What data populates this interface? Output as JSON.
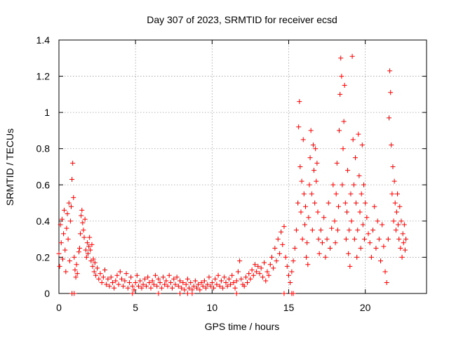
{
  "chart_data": {
    "type": "scatter",
    "title": "Day 307 of 2023, SRMTID for receiver ecsd",
    "xlabel": "GPS time / hours",
    "ylabel": "SRMTID / TECUs",
    "xlim": [
      0,
      24
    ],
    "ylim": [
      0,
      1.4
    ],
    "xticks": [
      0,
      5,
      10,
      15,
      20
    ],
    "xtick_labels": [
      "0",
      "5",
      "10",
      "15",
      "20"
    ],
    "yticks": [
      0,
      0.2,
      0.4,
      0.6,
      0.8,
      1.0,
      1.2,
      1.4
    ],
    "ytick_labels": [
      "0",
      "0.2",
      "0.4",
      "0.6",
      "0.8",
      "1",
      "1.2",
      "1.4"
    ],
    "grid": true,
    "marker": "+",
    "series_color": "#ff0000",
    "series": [
      {
        "name": "SRMTID",
        "points": [
          [
            0.0,
            0.22
          ],
          [
            0.05,
            0.15
          ],
          [
            0.1,
            0.38
          ],
          [
            0.15,
            0.28
          ],
          [
            0.2,
            0.41
          ],
          [
            0.25,
            0.19
          ],
          [
            0.3,
            0.33
          ],
          [
            0.35,
            0.46
          ],
          [
            0.4,
            0.24
          ],
          [
            0.45,
            0.12
          ],
          [
            0.5,
            0.36
          ],
          [
            0.55,
            0.44
          ],
          [
            0.6,
            0.3
          ],
          [
            0.65,
            0.5
          ],
          [
            0.7,
            0.18
          ],
          [
            0.75,
            0.4
          ],
          [
            0.8,
            0.48
          ],
          [
            0.85,
            0.63
          ],
          [
            0.9,
            0.72
          ],
          [
            0.95,
            0.53
          ],
          [
            1.0,
            0.2
          ],
          [
            1.05,
            0.13
          ],
          [
            1.1,
            0.09
          ],
          [
            1.15,
            0.16
          ],
          [
            1.2,
            0.11
          ],
          [
            1.3,
            0.23
          ],
          [
            1.35,
            0.25
          ],
          [
            1.4,
            0.33
          ],
          [
            1.45,
            0.43
          ],
          [
            1.5,
            0.46
          ],
          [
            1.55,
            0.39
          ],
          [
            1.6,
            0.35
          ],
          [
            1.65,
            0.31
          ],
          [
            1.7,
            0.41
          ],
          [
            1.75,
            0.24
          ],
          [
            1.8,
            0.2
          ],
          [
            1.85,
            0.28
          ],
          [
            1.9,
            0.22
          ],
          [
            1.95,
            0.26
          ],
          [
            2.0,
            0.31
          ],
          [
            2.05,
            0.24
          ],
          [
            2.1,
            0.18
          ],
          [
            2.15,
            0.27
          ],
          [
            2.2,
            0.15
          ],
          [
            2.25,
            0.19
          ],
          [
            2.3,
            0.12
          ],
          [
            2.35,
            0.17
          ],
          [
            2.4,
            0.1
          ],
          [
            2.5,
            0.14
          ],
          [
            2.6,
            0.08
          ],
          [
            2.7,
            0.11
          ],
          [
            2.8,
            0.06
          ],
          [
            2.9,
            0.09
          ],
          [
            3.0,
            0.13
          ],
          [
            3.1,
            0.05
          ],
          [
            3.2,
            0.08
          ],
          [
            3.3,
            0.04
          ],
          [
            3.4,
            0.09
          ],
          [
            3.5,
            0.06
          ],
          [
            3.6,
            0.03
          ],
          [
            3.7,
            0.07
          ],
          [
            3.8,
            0.1
          ],
          [
            3.9,
            0.05
          ],
          [
            4.0,
            0.12
          ],
          [
            4.1,
            0.08
          ],
          [
            4.2,
            0.04
          ],
          [
            4.3,
            0.07
          ],
          [
            4.4,
            0.11
          ],
          [
            4.5,
            0.03
          ],
          [
            4.6,
            0.06
          ],
          [
            4.7,
            0.09
          ],
          [
            4.8,
            0.04
          ],
          [
            4.9,
            0.02
          ],
          [
            5.0,
            0.06
          ],
          [
            5.1,
            0.1
          ],
          [
            5.2,
            0.04
          ],
          [
            5.3,
            0.07
          ],
          [
            5.4,
            0.03
          ],
          [
            5.5,
            0.05
          ],
          [
            5.6,
            0.08
          ],
          [
            5.7,
            0.04
          ],
          [
            5.8,
            0.09
          ],
          [
            5.9,
            0.06
          ],
          [
            6.0,
            0.03
          ],
          [
            6.1,
            0.07
          ],
          [
            6.2,
            0.05
          ],
          [
            6.3,
            0.1
          ],
          [
            6.4,
            0.04
          ],
          [
            6.5,
            0.08
          ],
          [
            6.6,
            0.06
          ],
          [
            6.7,
            0.03
          ],
          [
            6.8,
            0.09
          ],
          [
            6.9,
            0.05
          ],
          [
            7.0,
            0.07
          ],
          [
            7.1,
            0.04
          ],
          [
            7.2,
            0.1
          ],
          [
            7.3,
            0.06
          ],
          [
            7.4,
            0.03
          ],
          [
            7.5,
            0.08
          ],
          [
            7.6,
            0.05
          ],
          [
            7.7,
            0.09
          ],
          [
            7.8,
            0.04
          ],
          [
            7.9,
            0.07
          ],
          [
            8.0,
            0.03
          ],
          [
            8.1,
            0.06
          ],
          [
            8.2,
            0.02
          ],
          [
            8.3,
            0.05
          ],
          [
            8.4,
            0.08
          ],
          [
            8.5,
            0.03
          ],
          [
            8.6,
            0.06
          ],
          [
            8.7,
            0.02
          ],
          [
            8.8,
            0.04
          ],
          [
            8.9,
            0.07
          ],
          [
            9.0,
            0.03
          ],
          [
            9.1,
            0.05
          ],
          [
            9.2,
            0.02
          ],
          [
            9.3,
            0.06
          ],
          [
            9.4,
            0.04
          ],
          [
            9.5,
            0.07
          ],
          [
            9.6,
            0.03
          ],
          [
            9.7,
            0.05
          ],
          [
            9.8,
            0.09
          ],
          [
            9.9,
            0.04
          ],
          [
            10.0,
            0.06
          ],
          [
            10.1,
            0.03
          ],
          [
            10.2,
            0.08
          ],
          [
            10.3,
            0.05
          ],
          [
            10.4,
            0.1
          ],
          [
            10.5,
            0.04
          ],
          [
            10.6,
            0.07
          ],
          [
            10.7,
            0.03
          ],
          [
            10.8,
            0.09
          ],
          [
            10.9,
            0.06
          ],
          [
            11.0,
            0.04
          ],
          [
            11.1,
            0.08
          ],
          [
            11.2,
            0.05
          ],
          [
            11.3,
            0.1
          ],
          [
            11.4,
            0.06
          ],
          [
            11.5,
            0.03
          ],
          [
            11.6,
            0.07
          ],
          [
            11.7,
            0.12
          ],
          [
            11.8,
            0.18
          ],
          [
            11.9,
            0.08
          ],
          [
            12.0,
            0.05
          ],
          [
            12.1,
            0.04
          ],
          [
            12.2,
            0.09
          ],
          [
            12.3,
            0.06
          ],
          [
            12.4,
            0.11
          ],
          [
            12.5,
            0.08
          ],
          [
            12.6,
            0.13
          ],
          [
            12.7,
            0.1
          ],
          [
            12.8,
            0.16
          ],
          [
            12.9,
            0.12
          ],
          [
            13.0,
            0.15
          ],
          [
            13.1,
            0.11
          ],
          [
            13.2,
            0.14
          ],
          [
            13.3,
            0.09
          ],
          [
            13.4,
            0.17
          ],
          [
            13.5,
            0.07
          ],
          [
            13.6,
            0.12
          ],
          [
            13.7,
            0.1
          ],
          [
            13.8,
            0.16
          ],
          [
            13.9,
            0.2
          ],
          [
            14.0,
            0.14
          ],
          [
            14.1,
            0.25
          ],
          [
            14.2,
            0.18
          ],
          [
            14.3,
            0.3
          ],
          [
            14.4,
            0.22
          ],
          [
            14.5,
            0.34
          ],
          [
            14.6,
            0.27
          ],
          [
            14.7,
            0.37
          ],
          [
            14.8,
            0.2
          ],
          [
            14.9,
            0.15
          ],
          [
            15.0,
            0.1
          ],
          [
            15.1,
            0.06
          ],
          [
            15.2,
            0.12
          ],
          [
            15.3,
            0.18
          ],
          [
            15.4,
            0.25
          ],
          [
            15.5,
            0.35
          ],
          [
            15.6,
            0.5
          ],
          [
            15.65,
            0.92
          ],
          [
            15.7,
            1.06
          ],
          [
            15.75,
            0.7
          ],
          [
            15.8,
            0.45
          ],
          [
            15.85,
            0.62
          ],
          [
            15.9,
            0.3
          ],
          [
            15.95,
            0.85
          ],
          [
            16.0,
            0.55
          ],
          [
            16.05,
            0.38
          ],
          [
            16.1,
            0.48
          ],
          [
            16.15,
            0.2
          ],
          [
            16.2,
            0.28
          ],
          [
            16.25,
            0.16
          ],
          [
            16.3,
            0.42
          ],
          [
            16.35,
            0.6
          ],
          [
            16.4,
            0.75
          ],
          [
            16.45,
            0.9
          ],
          [
            16.5,
            0.55
          ],
          [
            16.55,
            0.35
          ],
          [
            16.6,
            0.82
          ],
          [
            16.65,
            0.68
          ],
          [
            16.7,
            0.5
          ],
          [
            16.75,
            0.8
          ],
          [
            16.8,
            0.62
          ],
          [
            16.85,
            0.72
          ],
          [
            16.9,
            0.45
          ],
          [
            16.95,
            0.3
          ],
          [
            17.0,
            0.22
          ],
          [
            17.1,
            0.35
          ],
          [
            17.2,
            0.28
          ],
          [
            17.3,
            0.42
          ],
          [
            17.4,
            0.2
          ],
          [
            17.5,
            0.3
          ],
          [
            17.6,
            0.5
          ],
          [
            17.7,
            0.25
          ],
          [
            17.8,
            0.36
          ],
          [
            17.9,
            0.6
          ],
          [
            18.0,
            0.4
          ],
          [
            18.05,
            0.28
          ],
          [
            18.1,
            0.55
          ],
          [
            18.15,
            0.72
          ],
          [
            18.2,
            0.35
          ],
          [
            18.25,
            0.48
          ],
          [
            18.3,
            0.9
          ],
          [
            18.35,
            1.1
          ],
          [
            18.4,
            1.3
          ],
          [
            18.45,
            1.2
          ],
          [
            18.5,
            0.6
          ],
          [
            18.55,
            0.8
          ],
          [
            18.6,
            0.95
          ],
          [
            18.65,
            1.15
          ],
          [
            18.7,
            0.5
          ],
          [
            18.75,
            0.3
          ],
          [
            18.8,
            0.45
          ],
          [
            18.85,
            0.68
          ],
          [
            18.9,
            0.22
          ],
          [
            18.95,
            0.35
          ],
          [
            19.0,
            0.15
          ],
          [
            19.05,
            0.55
          ],
          [
            19.1,
            0.4
          ],
          [
            19.15,
            1.31
          ],
          [
            19.2,
            0.85
          ],
          [
            19.25,
            0.6
          ],
          [
            19.3,
            0.3
          ],
          [
            19.35,
            0.75
          ],
          [
            19.4,
            0.5
          ],
          [
            19.45,
            0.2
          ],
          [
            19.5,
            0.35
          ],
          [
            19.55,
            0.88
          ],
          [
            19.6,
            0.65
          ],
          [
            19.65,
            0.45
          ],
          [
            19.7,
            0.25
          ],
          [
            19.75,
            0.55
          ],
          [
            19.8,
            0.82
          ],
          [
            19.85,
            0.38
          ],
          [
            19.9,
            0.6
          ],
          [
            19.95,
            0.3
          ],
          [
            20.0,
            0.5
          ],
          [
            20.1,
            0.42
          ],
          [
            20.2,
            0.33
          ],
          [
            20.3,
            0.28
          ],
          [
            20.4,
            0.2
          ],
          [
            20.5,
            0.35
          ],
          [
            20.6,
            0.48
          ],
          [
            20.7,
            0.25
          ],
          [
            20.8,
            0.4
          ],
          [
            20.9,
            0.3
          ],
          [
            21.0,
            0.18
          ],
          [
            21.1,
            0.38
          ],
          [
            21.2,
            0.26
          ],
          [
            21.3,
            0.12
          ],
          [
            21.4,
            0.06
          ],
          [
            21.5,
            0.3
          ],
          [
            21.55,
            0.97
          ],
          [
            21.6,
            1.23
          ],
          [
            21.65,
            1.11
          ],
          [
            21.7,
            0.82
          ],
          [
            21.75,
            0.55
          ],
          [
            21.8,
            0.7
          ],
          [
            21.85,
            0.4
          ],
          [
            21.9,
            0.62
          ],
          [
            21.95,
            0.5
          ],
          [
            22.0,
            0.35
          ],
          [
            22.05,
            0.45
          ],
          [
            22.1,
            0.55
          ],
          [
            22.15,
            0.38
          ],
          [
            22.2,
            0.3
          ],
          [
            22.25,
            0.48
          ],
          [
            22.3,
            0.25
          ],
          [
            22.35,
            0.4
          ],
          [
            22.4,
            0.2
          ],
          [
            22.45,
            0.33
          ],
          [
            22.5,
            0.28
          ],
          [
            22.55,
            0.38
          ],
          [
            22.6,
            0.24
          ],
          [
            22.65,
            0.3
          ],
          [
            0.85,
            0.0
          ],
          [
            1.0,
            0.0
          ],
          [
            4.8,
            0.0
          ],
          [
            6.5,
            0.0
          ],
          [
            7.9,
            0.0
          ],
          [
            8.4,
            0.0
          ],
          [
            8.7,
            0.0
          ],
          [
            11.6,
            0.0
          ],
          [
            14.7,
            0.0
          ],
          [
            15.2,
            0.0
          ],
          [
            15.3,
            0.0
          ]
        ]
      }
    ]
  }
}
